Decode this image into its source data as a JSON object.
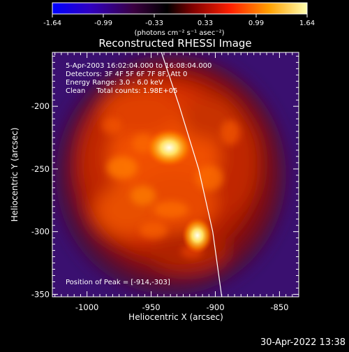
{
  "colorbar": {
    "ticks": [
      "-1.64",
      "-0.99",
      "-0.33",
      "0.33",
      "0.99",
      "1.64"
    ],
    "units": "(photons cm⁻² s⁻¹ asec⁻²)"
  },
  "info": {
    "line1": "5-Apr-2003 16:02:04.000 to 16:08:04.000",
    "line2": "Detectors: 3F 4F 5F 6F 7F 8F, Att 0",
    "line3": "Energy Range: 3.0 - 6.0 keV",
    "line4": "Clean     Total counts: 1.98E+05",
    "peak": "Position of Peak = [-914,-303]"
  },
  "footer": {
    "timestamp": "30-Apr-2022 13:38"
  },
  "chart_data": {
    "type": "heatmap",
    "title": "Reconstructed RHESSI Image",
    "xlabel": "Heliocentric X (arcsec)",
    "ylabel": "Heliocentric Y (arcsec)",
    "xlim": [
      -1027,
      -835
    ],
    "ylim": [
      -352,
      -157
    ],
    "xticks": [
      -1000,
      -950,
      -900,
      -850
    ],
    "xtick_labels": [
      "-1000",
      "-950",
      "-900",
      "-850"
    ],
    "yticks": [
      -200,
      -250,
      -300,
      -350
    ],
    "ytick_labels": [
      "-200",
      "-250",
      "-300",
      "-350"
    ],
    "colorscale": {
      "min": -1.64,
      "max": 1.64
    },
    "sources": [
      {
        "x": -936,
        "y": -233,
        "value": 1.64
      },
      {
        "x": -914,
        "y": -303,
        "value": 1.64
      }
    ],
    "limb": [
      {
        "x": -942,
        "y": -157
      },
      {
        "x": -928,
        "y": -200
      },
      {
        "x": -913,
        "y": -250
      },
      {
        "x": -902,
        "y": -300
      },
      {
        "x": -895,
        "y": -352
      }
    ],
    "peak_position": [
      -914,
      -303
    ]
  }
}
